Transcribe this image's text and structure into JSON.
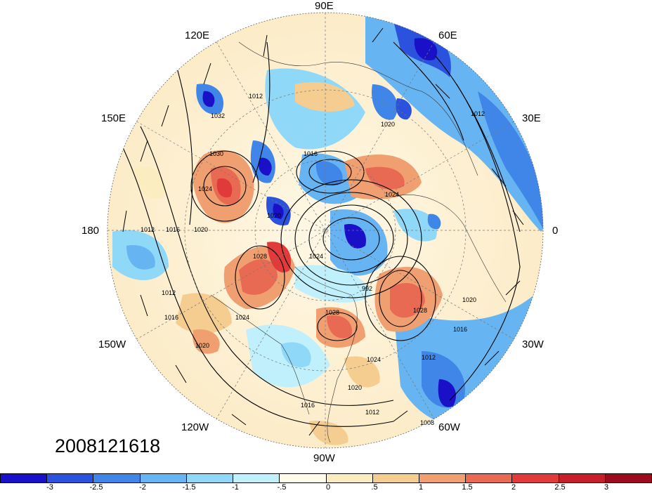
{
  "timestamp": "2008121618",
  "longitude_labels": [
    "90E",
    "60E",
    "30E",
    "0",
    "30W",
    "60W",
    "90W",
    "120W",
    "150W",
    "180",
    "150E",
    "120E"
  ],
  "colorbar": {
    "colors": [
      "#1a10c8",
      "#2a52dc",
      "#3f86e8",
      "#66b4f2",
      "#8fd8f8",
      "#c0f0fb",
      "#fffce8",
      "#fcedc0",
      "#f6cd90",
      "#f0a070",
      "#e86a52",
      "#e03a3a",
      "#c81e2a",
      "#9e0a1e"
    ],
    "labels": [
      "-3",
      "-2.5",
      "-2",
      "-1.5",
      "-1",
      "-.5",
      "0",
      ".5",
      "1",
      "1.5",
      "2",
      "2.5",
      "3"
    ]
  },
  "isobar_labels": [
    "1032",
    "1030",
    "1024",
    "1020",
    "1016",
    "1012",
    "1012",
    "1016",
    "1020",
    "1024",
    "1028",
    "1028",
    "1020",
    "1016",
    "1012",
    "1008",
    "1012",
    "1016",
    "1020",
    "1024",
    "1028",
    "1024",
    "1020",
    "1016",
    "1012",
    "1012",
    "1020",
    "1024",
    "992"
  ]
}
